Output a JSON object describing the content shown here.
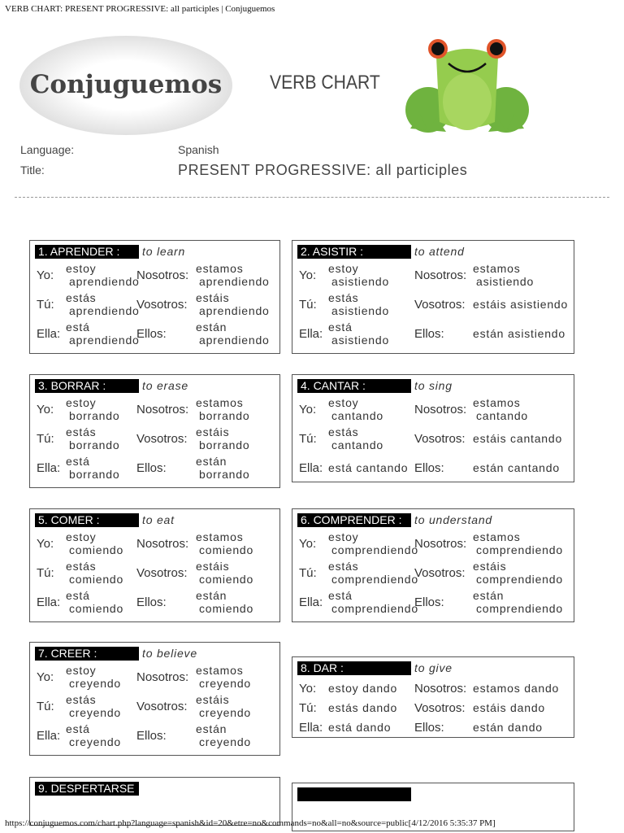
{
  "page_title": "VERB CHART: PRESENT PROGRESSIVE: all participles | Conjuguemos",
  "logo_text": "Conjuguemos",
  "heading": "VERB CHART",
  "language_label": "Language:",
  "language_value": "Spanish",
  "title_label": "Title:",
  "title_value": "PRESENT PROGRESSIVE: all participles",
  "pronouns": [
    "Yo:",
    "Tú:",
    "Ella:",
    "Nosotros:",
    "Vosotros:",
    "Ellos:"
  ],
  "verbs": [
    {
      "label": "1. APRENDER :",
      "meaning": "to learn",
      "forms": [
        "estoy aprendiendo",
        "estás aprendiendo",
        "está aprendiendo",
        "estamos aprendiendo",
        "estáis aprendiendo",
        "están aprendiendo"
      ]
    },
    {
      "label": "2. ASISTIR :",
      "meaning": "to attend",
      "forms": [
        "estoy asistiendo",
        "estás asistiendo",
        "está asistiendo",
        "estamos asistiendo",
        "estáis asistiendo",
        "están asistiendo"
      ]
    },
    {
      "label": "3. BORRAR :",
      "meaning": "to erase",
      "forms": [
        "estoy borrando",
        "estás borrando",
        "está borrando",
        "estamos borrando",
        "estáis borrando",
        "están borrando"
      ]
    },
    {
      "label": "4. CANTAR :",
      "meaning": "to sing",
      "forms": [
        "estoy cantando",
        "estás cantando",
        "está cantando",
        "estamos cantando",
        "estáis cantando",
        "están cantando"
      ]
    },
    {
      "label": "5. COMER :",
      "meaning": "to eat",
      "forms": [
        "estoy comiendo",
        "estás comiendo",
        "está comiendo",
        "estamos comiendo",
        "estáis comiendo",
        "están comiendo"
      ]
    },
    {
      "label": "6. COMPRENDER :",
      "meaning": "to understand",
      "forms": [
        "estoy comprendiendo",
        "estás comprendiendo",
        "está comprendiendo",
        "estamos comprendiendo",
        "estáis comprendiendo",
        "están comprendiendo"
      ]
    },
    {
      "label": "7. CREER :",
      "meaning": "to believe",
      "forms": [
        "estoy creyendo",
        "estás creyendo",
        "está creyendo",
        "estamos creyendo",
        "estáis creyendo",
        "están creyendo"
      ]
    },
    {
      "label": "8. DAR :",
      "meaning": "to give",
      "forms": [
        "estoy dando",
        "estás dando",
        "está dando",
        "estamos dando",
        "estáis dando",
        "están dando"
      ]
    },
    {
      "label": "9. DESPERTARSE",
      "meaning": "",
      "forms": []
    },
    {
      "label": "",
      "meaning": "",
      "forms": []
    }
  ],
  "url": "https://conjuguemos.com/chart.php?language=spanish&id=20&etre=no&commands=no&all=no&source=public[4/12/2016 5:35:37 PM]"
}
